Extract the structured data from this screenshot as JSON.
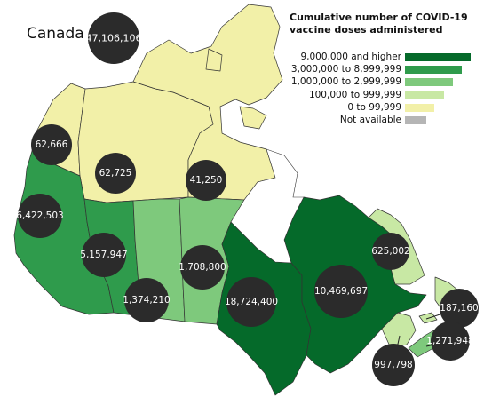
{
  "title": "Cumulative number of COVID-19 vaccine doses administered",
  "country": {
    "name": "Canada",
    "total": "47,106,106"
  },
  "colors": {
    "tier5": "#056a2a",
    "tier4": "#2f9b4c",
    "tier3": "#7ec97c",
    "tier2": "#c8e8a4",
    "tier1": "#f2f0a8",
    "na": "#b5b5b5",
    "bubble": "#2b2b2b",
    "water": "#ffffff"
  },
  "legend": [
    {
      "label": "9,000,000 and higher",
      "color": "#056a2a",
      "barwidth": 1.0
    },
    {
      "label": "3,000,000 to 8,999,999",
      "color": "#2f9b4c",
      "barwidth": 0.86
    },
    {
      "label": "1,000,000 to 2,999,999",
      "color": "#7ec97c",
      "barwidth": 0.73
    },
    {
      "label": "100,000 to 999,999",
      "color": "#c8e8a4",
      "barwidth": 0.59
    },
    {
      "label": "0 to 99,999",
      "color": "#f2f0a8",
      "barwidth": 0.45
    },
    {
      "label": "Not available",
      "color": "#b5b5b5",
      "barwidth": 0.32
    }
  ],
  "regions": [
    {
      "name": "Yukon",
      "doses": "62,666",
      "tier": "tier1"
    },
    {
      "name": "Northwest Territories",
      "doses": "62,725",
      "tier": "tier1"
    },
    {
      "name": "Nunavut",
      "doses": "41,250",
      "tier": "tier1"
    },
    {
      "name": "British Columbia",
      "doses": "6,422,503",
      "tier": "tier4"
    },
    {
      "name": "Alberta",
      "doses": "5,157,947",
      "tier": "tier4"
    },
    {
      "name": "Saskatchewan",
      "doses": "1,374,210",
      "tier": "tier3"
    },
    {
      "name": "Manitoba",
      "doses": "1,708,800",
      "tier": "tier3"
    },
    {
      "name": "Ontario",
      "doses": "18,724,400",
      "tier": "tier5"
    },
    {
      "name": "Quebec",
      "doses": "10,469,697",
      "tier": "tier5"
    },
    {
      "name": "Newfoundland and Labrador",
      "doses": "625,002",
      "tier": "tier2"
    },
    {
      "name": "Prince Edward Island",
      "doses": "187,160",
      "tier": "tier2"
    },
    {
      "name": "Nova Scotia",
      "doses": "1,271,948",
      "tier": "tier3"
    },
    {
      "name": "New Brunswick",
      "doses": "997,798",
      "tier": "tier2"
    }
  ]
}
